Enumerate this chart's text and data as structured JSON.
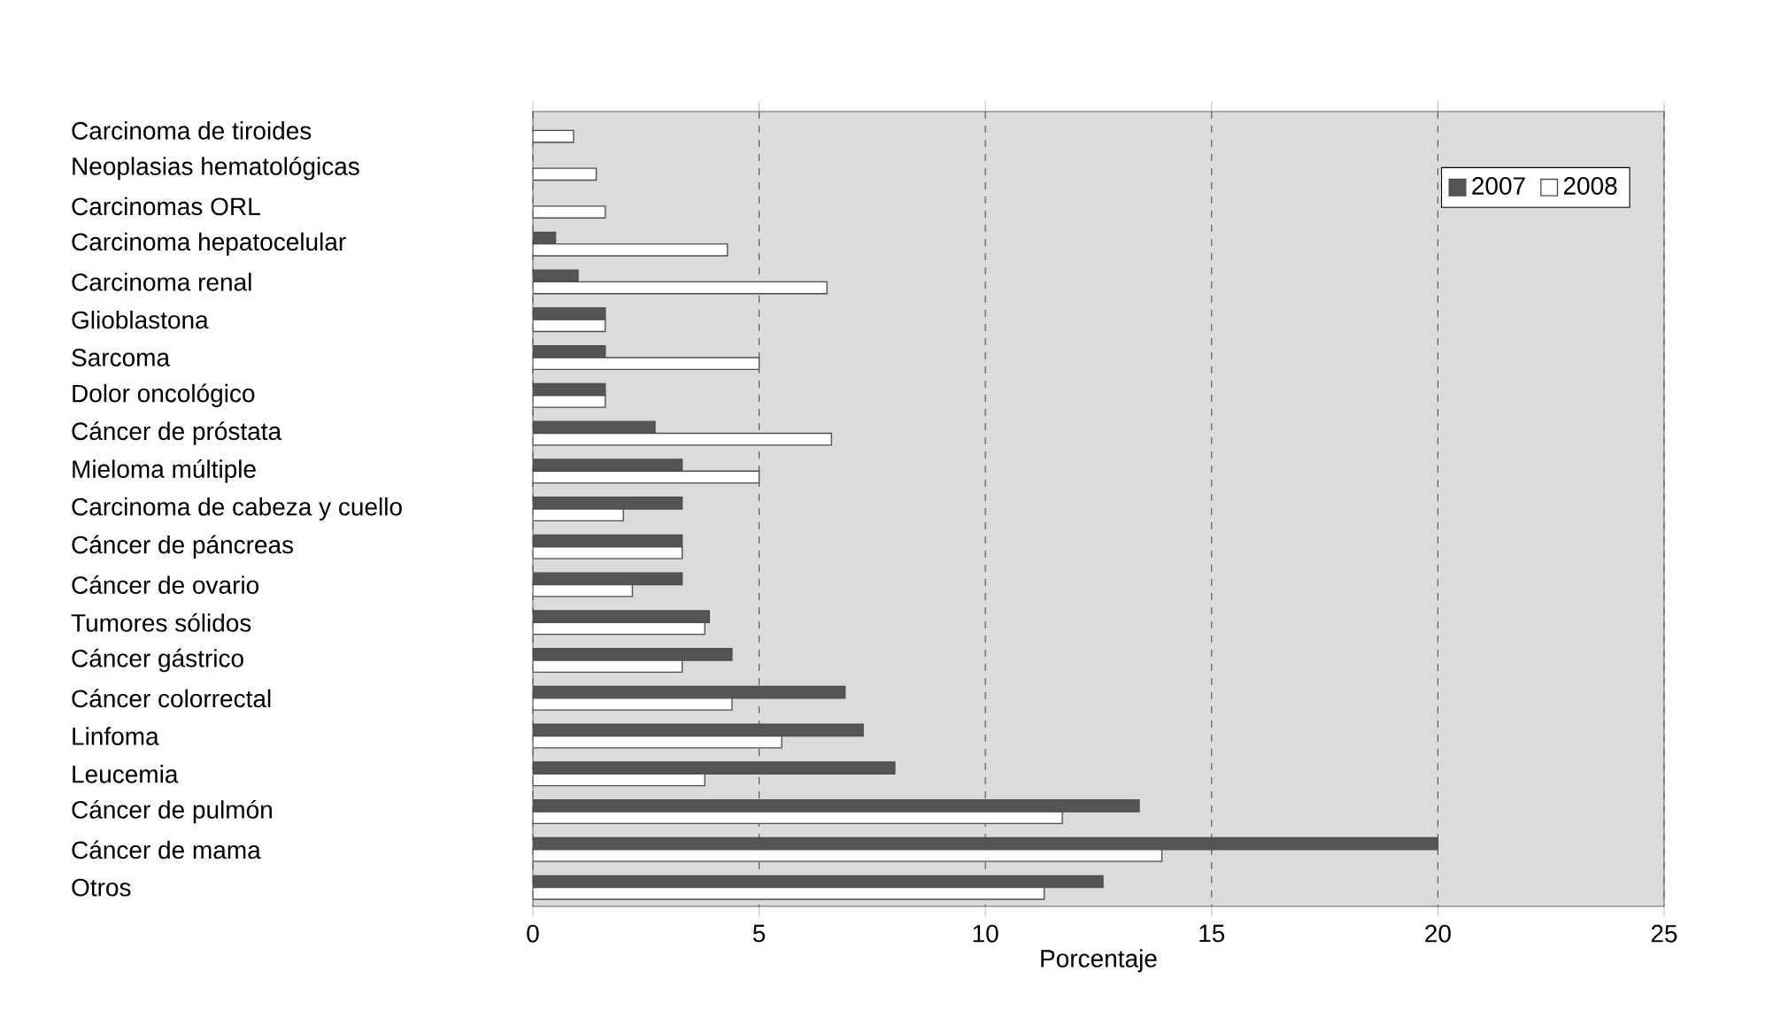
{
  "chart_data": {
    "type": "bar",
    "orientation": "horizontal",
    "categories": [
      "Carcinoma de tiroides",
      "Neoplasias hematológicas",
      "Carcinomas ORL",
      "Carcinoma hepatocelular",
      "Carcinoma renal",
      "Glioblastona",
      "Sarcoma",
      "Dolor oncológico",
      "Cáncer de próstata",
      "Mieloma múltiple",
      "Carcinoma de cabeza y cuello",
      "Cáncer de páncreas",
      "Cáncer de ovario",
      "Tumores sólidos",
      "Cáncer gástrico",
      "Cáncer colorrectal",
      "Linfoma",
      "Leucemia",
      "Cáncer de pulmón",
      "Cáncer de mama",
      "Otros"
    ],
    "series": [
      {
        "name": "2007",
        "color": "#555555",
        "values": [
          null,
          null,
          null,
          0.5,
          1.0,
          1.6,
          1.6,
          1.6,
          2.7,
          3.3,
          3.3,
          3.3,
          3.3,
          3.9,
          4.4,
          6.9,
          7.3,
          8.0,
          13.4,
          20.0,
          12.6
        ]
      },
      {
        "name": "2008",
        "color": "#ffffff",
        "values": [
          0.9,
          1.4,
          1.6,
          4.3,
          6.5,
          1.6,
          5.0,
          1.6,
          6.6,
          5.0,
          2.0,
          3.3,
          2.2,
          3.8,
          3.3,
          4.4,
          5.5,
          3.8,
          11.7,
          13.9,
          11.3
        ]
      }
    ],
    "xlabel": "Porcentaje",
    "xlim": [
      0,
      25
    ],
    "xticks": [
      0,
      5,
      10,
      15,
      20,
      25
    ],
    "grid": "x",
    "legend": "top right"
  }
}
